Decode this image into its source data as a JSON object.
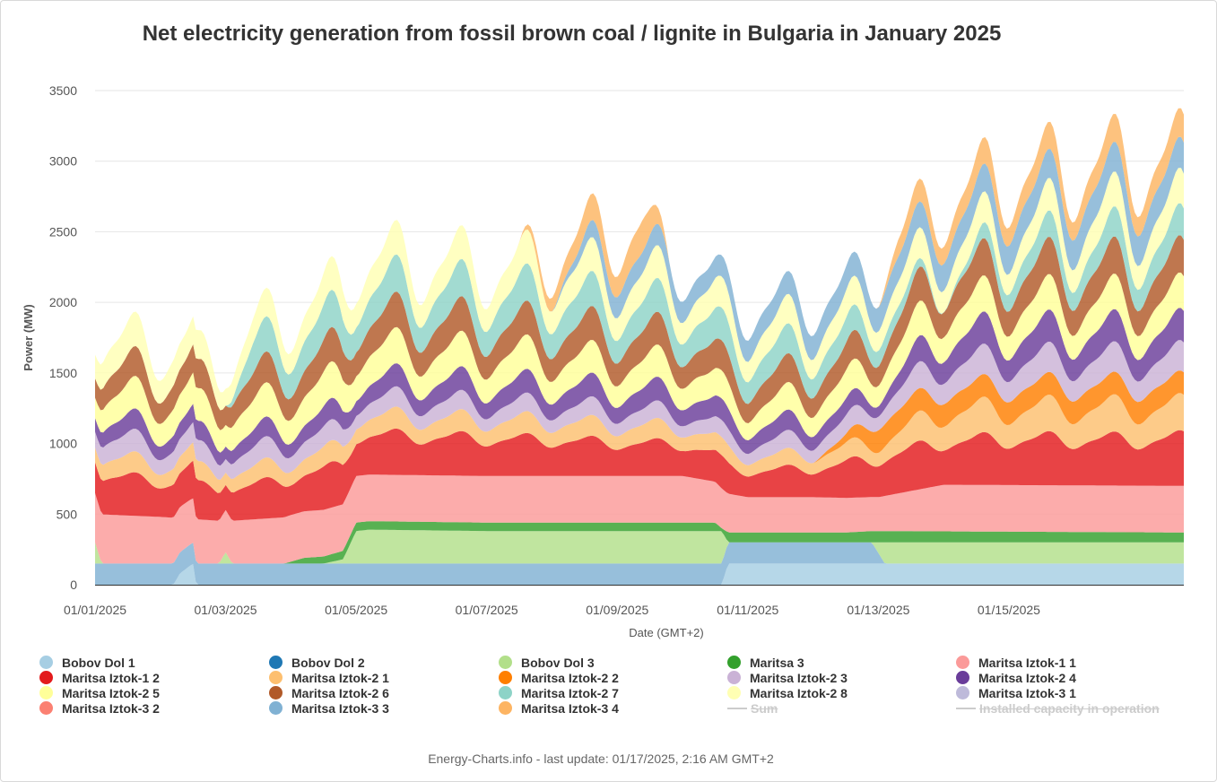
{
  "chart_data": {
    "type": "area",
    "stacked": true,
    "title": "Net electricity generation from fossil brown coal / lignite in Bulgaria in January 2025",
    "xlabel": "Date (GMT+2)",
    "ylabel": "Power (MW)",
    "ylim": [
      0,
      3500
    ],
    "yticks": [
      0,
      500,
      1000,
      1500,
      2000,
      2500,
      3000,
      3500
    ],
    "x_range_days": [
      0,
      16.68
    ],
    "xticks": [
      {
        "day": 0,
        "label": "01/01/2025"
      },
      {
        "day": 2,
        "label": "01/03/2025"
      },
      {
        "day": 4,
        "label": "01/05/2025"
      },
      {
        "day": 6,
        "label": "01/07/2025"
      },
      {
        "day": 8,
        "label": "01/09/2025"
      },
      {
        "day": 10,
        "label": "01/11/2025"
      },
      {
        "day": 12,
        "label": "01/13/2025"
      },
      {
        "day": 14,
        "label": "01/15/2025"
      }
    ],
    "grid": true,
    "legend_position": "bottom",
    "series_note_days": "x values are days since 01/01/2025 00:00 (GMT+2); y values in MW",
    "series": [
      {
        "name": "Bobov Dol 1",
        "color": "#a6cee3",
        "visible": true,
        "points": [
          [
            0,
            0
          ],
          [
            1.2,
            0
          ],
          [
            1.3,
            80
          ],
          [
            1.5,
            150
          ],
          [
            1.55,
            0
          ],
          [
            9.6,
            0
          ],
          [
            9.7,
            150
          ],
          [
            16.68,
            150
          ]
        ]
      },
      {
        "name": "Bobov Dol 2",
        "color": "#1f78b4",
        "visible": true,
        "points": [
          [
            0,
            0
          ],
          [
            9.6,
            0
          ],
          [
            9.7,
            0
          ],
          [
            16.68,
            0
          ]
        ]
      },
      {
        "name": "Bobov Dol 3",
        "color": "#b2df8a",
        "visible": true,
        "points": [
          [
            0,
            150
          ],
          [
            0.1,
            0
          ],
          [
            1.9,
            0
          ],
          [
            2.0,
            80
          ],
          [
            2.1,
            0
          ],
          [
            3.5,
            0
          ],
          [
            3.8,
            30
          ],
          [
            4.0,
            230
          ],
          [
            4.2,
            240
          ],
          [
            6,
            230
          ],
          [
            9.6,
            230
          ],
          [
            9.7,
            0
          ],
          [
            11.9,
            0
          ],
          [
            12.1,
            150
          ],
          [
            16.68,
            150
          ]
        ]
      },
      {
        "name": "Maritsa 3",
        "color": "#33a02c",
        "visible": true,
        "points": [
          [
            0,
            0
          ],
          [
            2.9,
            0
          ],
          [
            3.2,
            40
          ],
          [
            3.8,
            60
          ],
          [
            4.0,
            60
          ],
          [
            9.5,
            60
          ],
          [
            9.6,
            20
          ],
          [
            9.7,
            70
          ],
          [
            11.5,
            70
          ],
          [
            11.9,
            80
          ],
          [
            12.0,
            80
          ],
          [
            16.68,
            70
          ]
        ]
      },
      {
        "name": "Maritsa Iztok-1 1",
        "color": "#fb9a99",
        "visible": true,
        "points": [
          [
            0,
            350
          ],
          [
            1,
            330
          ],
          [
            2,
            300
          ],
          [
            3,
            330
          ],
          [
            4,
            330
          ],
          [
            5,
            330
          ],
          [
            6,
            330
          ],
          [
            7,
            330
          ],
          [
            8,
            330
          ],
          [
            9,
            330
          ],
          [
            10,
            250
          ],
          [
            11,
            250
          ],
          [
            12,
            240
          ],
          [
            13,
            330
          ],
          [
            14,
            330
          ],
          [
            15,
            330
          ],
          [
            16,
            330
          ],
          [
            16.68,
            330
          ]
        ]
      },
      {
        "name": "Maritsa Iztok-1 2",
        "color": "#e31a1c",
        "visible": true,
        "points": [
          [
            0,
            270
          ],
          [
            1,
            250
          ],
          [
            2,
            220
          ],
          [
            3,
            260
          ],
          [
            4,
            280
          ],
          [
            5,
            270
          ],
          [
            6,
            260
          ],
          [
            7,
            250
          ],
          [
            8,
            230
          ],
          [
            9,
            220
          ],
          [
            10,
            180
          ],
          [
            11,
            200
          ],
          [
            12,
            270
          ],
          [
            13,
            300
          ],
          [
            14,
            320
          ],
          [
            15,
            320
          ],
          [
            16,
            320
          ],
          [
            16.68,
            330
          ]
        ]
      },
      {
        "name": "Maritsa Iztok-2 1",
        "color": "#fdbf6f",
        "visible": true,
        "points": [
          [
            0,
            130
          ],
          [
            1,
            120
          ],
          [
            2,
            110
          ],
          [
            3,
            120
          ],
          [
            4,
            130
          ],
          [
            5,
            130
          ],
          [
            6,
            130
          ],
          [
            7,
            130
          ],
          [
            8,
            120
          ],
          [
            9,
            120
          ],
          [
            10,
            100
          ],
          [
            11,
            100
          ],
          [
            12,
            120
          ],
          [
            13,
            210
          ],
          [
            14,
            210
          ],
          [
            15,
            220
          ],
          [
            16,
            220
          ],
          [
            16.68,
            220
          ]
        ]
      },
      {
        "name": "Maritsa Iztok-2 2",
        "color": "#ff7f00",
        "visible": true,
        "points": [
          [
            0,
            0
          ],
          [
            11,
            0
          ],
          [
            11.5,
            60
          ],
          [
            12,
            160
          ],
          [
            13,
            160
          ],
          [
            14,
            160
          ],
          [
            15,
            160
          ],
          [
            16,
            160
          ],
          [
            16.68,
            160
          ]
        ]
      },
      {
        "name": "Maritsa Iztok-2 3",
        "color": "#cab2d6",
        "visible": true,
        "points": [
          [
            0,
            140
          ],
          [
            1,
            130
          ],
          [
            2,
            120
          ],
          [
            3,
            130
          ],
          [
            4,
            120
          ],
          [
            5,
            120
          ],
          [
            6,
            110
          ],
          [
            7,
            110
          ],
          [
            8,
            110
          ],
          [
            9,
            100
          ],
          [
            10,
            100
          ],
          [
            11,
            110
          ],
          [
            12,
            120
          ],
          [
            13,
            180
          ],
          [
            14,
            180
          ],
          [
            15,
            180
          ],
          [
            16,
            180
          ],
          [
            16.68,
            180
          ]
        ]
      },
      {
        "name": "Maritsa Iztok-2 4",
        "color": "#6a3d9a",
        "visible": true,
        "points": [
          [
            0,
            120
          ],
          [
            1,
            120
          ],
          [
            2,
            110
          ],
          [
            3,
            120
          ],
          [
            4,
            130
          ],
          [
            5,
            140
          ],
          [
            6,
            140
          ],
          [
            7,
            140
          ],
          [
            8,
            140
          ],
          [
            9,
            140
          ],
          [
            10,
            120
          ],
          [
            11,
            120
          ],
          [
            12,
            90
          ],
          [
            13,
            190
          ],
          [
            14,
            190
          ],
          [
            15,
            190
          ],
          [
            16,
            190
          ],
          [
            16.68,
            190
          ]
        ]
      },
      {
        "name": "Maritsa Iztok-2 5",
        "color": "#ffff99",
        "visible": true,
        "points": [
          [
            0,
            180
          ],
          [
            1,
            200
          ],
          [
            2,
            190
          ],
          [
            3,
            210
          ],
          [
            4,
            220
          ],
          [
            5,
            210
          ],
          [
            6,
            210
          ],
          [
            7,
            200
          ],
          [
            8,
            190
          ],
          [
            9,
            190
          ],
          [
            10,
            150
          ],
          [
            11,
            170
          ],
          [
            12,
            180
          ],
          [
            13,
            220
          ],
          [
            14,
            210
          ],
          [
            15,
            210
          ],
          [
            16,
            210
          ],
          [
            16.68,
            210
          ]
        ]
      },
      {
        "name": "Maritsa Iztok-2 6",
        "color": "#b15928",
        "visible": true,
        "points": [
          [
            0,
            170
          ],
          [
            1,
            180
          ],
          [
            2,
            170
          ],
          [
            3,
            190
          ],
          [
            4,
            210
          ],
          [
            5,
            210
          ],
          [
            6,
            200
          ],
          [
            7,
            200
          ],
          [
            8,
            200
          ],
          [
            9,
            190
          ],
          [
            10,
            170
          ],
          [
            11,
            170
          ],
          [
            12,
            170
          ],
          [
            13,
            220
          ],
          [
            14,
            220
          ],
          [
            15,
            220
          ],
          [
            16,
            220
          ],
          [
            16.68,
            220
          ]
        ]
      },
      {
        "name": "Maritsa Iztok-2 7",
        "color": "#8dd3c7",
        "visible": true,
        "points": [
          [
            0,
            0
          ],
          [
            2,
            0
          ],
          [
            2.4,
            200
          ],
          [
            3,
            220
          ],
          [
            4,
            220
          ],
          [
            5,
            220
          ],
          [
            6,
            220
          ],
          [
            7,
            220
          ],
          [
            8,
            200
          ],
          [
            9,
            200
          ],
          [
            10,
            190
          ],
          [
            11,
            170
          ],
          [
            12,
            140
          ],
          [
            13,
            0
          ],
          [
            14,
            150
          ],
          [
            15,
            160
          ],
          [
            16,
            190
          ],
          [
            16.68,
            190
          ]
        ]
      },
      {
        "name": "Maritsa Iztok-2 8",
        "color": "#ffffb3",
        "visible": true,
        "points": [
          [
            0,
            210
          ],
          [
            1,
            200
          ],
          [
            2,
            150
          ],
          [
            3,
            180
          ],
          [
            4,
            210
          ],
          [
            5,
            200
          ],
          [
            6,
            200
          ],
          [
            7,
            200
          ],
          [
            8,
            200
          ],
          [
            9,
            190
          ],
          [
            10,
            180
          ],
          [
            11,
            170
          ],
          [
            12,
            170
          ],
          [
            13,
            190
          ],
          [
            14,
            180
          ],
          [
            15,
            200
          ],
          [
            16,
            210
          ],
          [
            16.68,
            210
          ]
        ]
      },
      {
        "name": "Maritsa Iztok-3 1",
        "color": "#bebada",
        "visible": true,
        "points": [
          [
            0,
            0
          ],
          [
            16.68,
            0
          ]
        ]
      },
      {
        "name": "Maritsa Iztok-3 2",
        "color": "#fb8072",
        "visible": true,
        "points": [
          [
            0,
            0
          ],
          [
            16.68,
            0
          ]
        ]
      },
      {
        "name": "Maritsa Iztok-3 3",
        "color": "#80b1d3",
        "visible": true,
        "points": [
          [
            0,
            150
          ],
          [
            1.2,
            150
          ],
          [
            1.4,
            150
          ],
          [
            1.5,
            150
          ],
          [
            9.6,
            150
          ],
          [
            9.7,
            150
          ],
          [
            11.9,
            150
          ],
          [
            12.1,
            0
          ],
          [
            16.68,
            0
          ],
          [
            16.68,
            0
          ]
        ],
        "upper_points": [
          [
            0,
            0
          ],
          [
            7,
            0
          ],
          [
            7.6,
            120
          ],
          [
            8,
            150
          ],
          [
            9,
            150
          ],
          [
            10,
            150
          ],
          [
            11,
            170
          ],
          [
            12,
            170
          ],
          [
            13,
            190
          ],
          [
            14,
            200
          ],
          [
            15,
            210
          ],
          [
            16,
            210
          ],
          [
            16.68,
            220
          ]
        ]
      },
      {
        "name": "Maritsa Iztok-3 4",
        "color": "#fdb462",
        "visible": true,
        "points": [
          [
            0,
            0
          ],
          [
            6.5,
            0
          ],
          [
            7,
            120
          ],
          [
            8,
            180
          ],
          [
            8.4,
            220
          ],
          [
            8.8,
            0
          ],
          [
            12,
            0
          ],
          [
            12.3,
            120
          ],
          [
            13,
            150
          ],
          [
            14,
            160
          ],
          [
            15,
            160
          ],
          [
            16,
            170
          ],
          [
            16.68,
            170
          ]
        ]
      }
    ],
    "extra_legend": [
      {
        "name": "Sum",
        "visible": false
      },
      {
        "name": "Installed capacity in operation",
        "visible": false
      }
    ]
  },
  "footer": "Energy-Charts.info - last update: 01/17/2025, 2:16 AM GMT+2"
}
